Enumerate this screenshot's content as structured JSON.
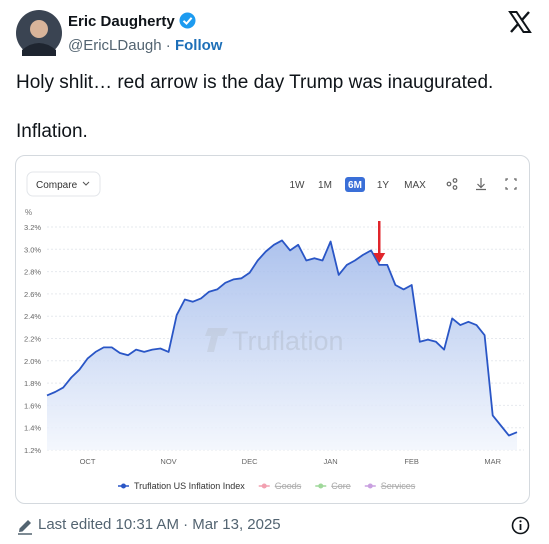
{
  "header": {
    "name": "Eric Daugherty",
    "handle": "@EricLDaugh",
    "separator": "·",
    "follow": "Follow"
  },
  "text": [
    "Holy shlit… red arrow is the day Trump was inaugurated.",
    "Inflation."
  ],
  "chart_data": {
    "type": "line",
    "controls": {
      "compare": "Compare",
      "ranges": [
        "1W",
        "1M",
        "6M",
        "1Y",
        "MAX"
      ],
      "selected_range": 2
    },
    "watermark": "Truflation",
    "y_label": "%",
    "categories": [
      null,
      null,
      null,
      null,
      null,
      "OCT",
      null,
      null,
      null,
      null,
      null,
      null,
      null,
      null,
      null,
      "NOV",
      null,
      null,
      null,
      null,
      null,
      null,
      null,
      null,
      null,
      "DEC",
      null,
      null,
      null,
      null,
      null,
      null,
      null,
      null,
      null,
      "JAN",
      null,
      null,
      null,
      null,
      null,
      null,
      null,
      null,
      null,
      "FEB",
      null,
      null,
      null,
      null,
      null,
      null,
      null,
      null,
      null,
      "MAR",
      null,
      null,
      null
    ],
    "series": [
      {
        "name": "Truflation US Inflation Index",
        "color": "#2a56c6",
        "values": [
          1.69,
          1.72,
          1.76,
          1.85,
          1.92,
          2.02,
          2.08,
          2.12,
          2.12,
          2.07,
          2.05,
          2.1,
          2.08,
          2.1,
          2.11,
          2.08,
          2.41,
          2.55,
          2.53,
          2.56,
          2.62,
          2.64,
          2.7,
          2.73,
          2.74,
          2.79,
          2.9,
          2.98,
          3.04,
          3.08,
          2.99,
          3.04,
          2.9,
          2.92,
          2.9,
          3.07,
          2.77,
          2.86,
          2.9,
          2.95,
          2.99,
          2.86,
          2.86,
          2.68,
          2.64,
          2.68,
          2.17,
          2.19,
          2.17,
          2.1,
          2.38,
          2.32,
          2.35,
          2.32,
          2.23,
          1.51,
          1.42,
          1.33,
          1.36
        ]
      }
    ],
    "hidden_series": [
      {
        "name": "Goods",
        "color": "#f2a0b0"
      },
      {
        "name": "Core",
        "color": "#9fd89a"
      },
      {
        "name": "Services",
        "color": "#c9a0e0"
      }
    ],
    "ylim": [
      1.2,
      3.2
    ],
    "yticks": [
      {
        "value": 1.2,
        "label": "1.2%"
      },
      {
        "value": 1.4,
        "label": "1.4%"
      },
      {
        "value": 1.6,
        "label": "1.6%"
      },
      {
        "value": 1.8,
        "label": "1.8%"
      },
      {
        "value": 2.0,
        "label": "2.0%"
      },
      {
        "value": 2.2,
        "label": "2.2%"
      },
      {
        "value": 2.4,
        "label": "2.4%"
      },
      {
        "value": 2.6,
        "label": "2.6%"
      },
      {
        "value": 2.8,
        "label": "2.8%"
      },
      {
        "value": 3.0,
        "label": "3.0%"
      },
      {
        "value": 3.2,
        "label": "3.2%"
      }
    ],
    "grid": true,
    "annotation_index": 41
  },
  "footer": {
    "edited": "Last edited 10:31 AM · Mar 13, 2025"
  }
}
